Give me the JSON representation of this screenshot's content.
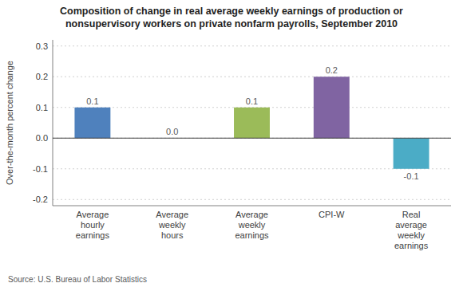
{
  "chart_data": {
    "type": "bar",
    "title": "Composition of change in real average weekly earnings of production or\nnonsupervisory workers on private nonfarm payrolls, September 2010",
    "categories": [
      "Average\nhourly\nearnings",
      "Average\nweekly\nhours",
      "Average\nweekly\nearnings",
      "CPI-W",
      "Real\naverage\nweekly\nearnings"
    ],
    "values": [
      0.1,
      0.0,
      0.1,
      0.2,
      -0.1
    ],
    "value_labels": [
      "0.1",
      "0.0",
      "0.1",
      "0.2",
      "-0.1"
    ],
    "colors": [
      "#4f81bd",
      "#9bbb59",
      "#9bbb59",
      "#8064a2",
      "#4bacc6"
    ],
    "ylabel": "Over-the-month percent change",
    "ylim": [
      -0.22,
      0.32
    ],
    "yticks": [
      -0.2,
      -0.1,
      {
        "value": 0,
        "label": "0.0"
      },
      0.1,
      0.2,
      0.3
    ],
    "grid": true,
    "data_labels": true,
    "source": "Source: U.S. Bureau of Labor Statistics"
  }
}
